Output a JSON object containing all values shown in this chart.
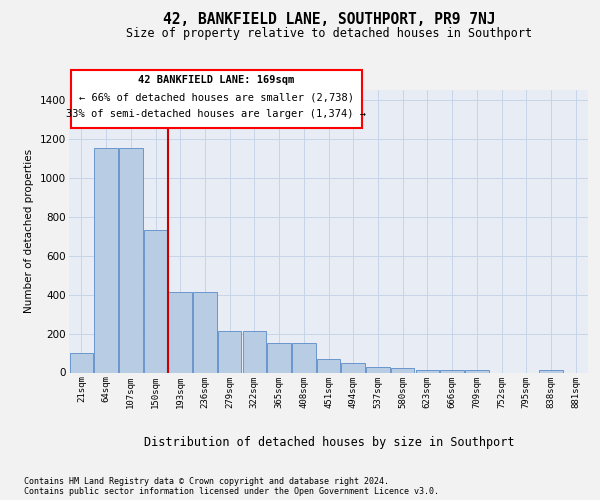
{
  "title": "42, BANKFIELD LANE, SOUTHPORT, PR9 7NJ",
  "subtitle": "Size of property relative to detached houses in Southport",
  "xlabel": "Distribution of detached houses by size in Southport",
  "ylabel": "Number of detached properties",
  "footnote1": "Contains HM Land Registry data © Crown copyright and database right 2024.",
  "footnote2": "Contains public sector information licensed under the Open Government Licence v3.0.",
  "annotation_line1": "42 BANKFIELD LANE: 169sqm",
  "annotation_line2": "← 66% of detached houses are smaller (2,738)",
  "annotation_line3": "33% of semi-detached houses are larger (1,374) →",
  "bar_labels": [
    "21sqm",
    "64sqm",
    "107sqm",
    "150sqm",
    "193sqm",
    "236sqm",
    "279sqm",
    "322sqm",
    "365sqm",
    "408sqm",
    "451sqm",
    "494sqm",
    "537sqm",
    "580sqm",
    "623sqm",
    "666sqm",
    "709sqm",
    "752sqm",
    "795sqm",
    "838sqm",
    "881sqm"
  ],
  "bar_values": [
    100,
    1150,
    1150,
    730,
    415,
    415,
    215,
    215,
    150,
    150,
    70,
    50,
    30,
    25,
    15,
    15,
    15,
    0,
    0,
    15,
    0
  ],
  "bar_color": "#b8cce4",
  "bar_edge_color": "#5b8cc8",
  "grid_color": "#c8d4e8",
  "bg_color": "#f2f2f2",
  "plot_bg_color": "#e8ecf5",
  "red_line_index": 4,
  "red_line_color": "#cc0000",
  "ylim": [
    0,
    1450
  ],
  "yticks": [
    0,
    200,
    400,
    600,
    800,
    1000,
    1200,
    1400
  ]
}
